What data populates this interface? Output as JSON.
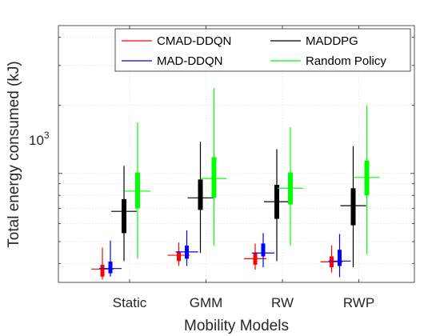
{
  "chart_data": {
    "type": "boxplot",
    "title": "",
    "xlabel": "Mobility Models",
    "ylabel": "Total energy consumed (kJ)",
    "yscale": "log",
    "ylim": [
      330,
      4500
    ],
    "ytick_label": "10",
    "ytick_exponent": "3",
    "grid": true,
    "legend_position": "top-right",
    "legend_columns": 2,
    "categories": [
      "Static",
      "GMM",
      "RW",
      "RWP"
    ],
    "series": [
      {
        "name": "CMAD-DDQN",
        "color": "#ff0000",
        "boxes": [
          {
            "whisker_low": 340,
            "q1": 350,
            "q3": 395,
            "whisker_high": 470,
            "mean": 378
          },
          {
            "whisker_low": 390,
            "q1": 410,
            "q3": 450,
            "whisker_high": 495,
            "mean": 435
          },
          {
            "whisker_low": 375,
            "q1": 395,
            "q3": 445,
            "whisker_high": 490,
            "mean": 420
          },
          {
            "whisker_low": 365,
            "q1": 385,
            "q3": 430,
            "whisker_high": 480,
            "mean": 407
          }
        ]
      },
      {
        "name": "MAD-DDQN",
        "color": "#0000ff",
        "boxes": [
          {
            "whisker_low": 350,
            "q1": 362,
            "q3": 408,
            "whisker_high": 505,
            "mean": 380
          },
          {
            "whisker_low": 390,
            "q1": 420,
            "q3": 480,
            "whisker_high": 560,
            "mean": 450
          },
          {
            "whisker_low": 385,
            "q1": 430,
            "q3": 490,
            "whisker_high": 545,
            "mean": 445
          },
          {
            "whisker_low": 348,
            "q1": 390,
            "q3": 460,
            "whisker_high": 540,
            "mean": 410
          }
        ]
      },
      {
        "name": "MADDPG",
        "color": "#000000",
        "boxes": [
          {
            "whisker_low": 410,
            "q1": 545,
            "q3": 770,
            "whisker_high": 1080,
            "mean": 680
          },
          {
            "whisker_low": 445,
            "q1": 690,
            "q3": 940,
            "whisker_high": 1380,
            "mean": 780
          },
          {
            "whisker_low": 410,
            "q1": 630,
            "q3": 890,
            "whisker_high": 1280,
            "mean": 750
          },
          {
            "whisker_low": 385,
            "q1": 590,
            "q3": 860,
            "whisker_high": 1320,
            "mean": 720
          }
        ]
      },
      {
        "name": "Random Policy",
        "color": "#00ff00",
        "boxes": [
          {
            "whisker_low": 420,
            "q1": 700,
            "q3": 1010,
            "whisker_high": 1680,
            "mean": 835
          },
          {
            "whisker_low": 480,
            "q1": 780,
            "q3": 1180,
            "whisker_high": 2380,
            "mean": 950
          },
          {
            "whisker_low": 480,
            "q1": 730,
            "q3": 1010,
            "whisker_high": 1600,
            "mean": 860
          },
          {
            "whisker_low": 440,
            "q1": 800,
            "q3": 1140,
            "whisker_high": 2000,
            "mean": 960
          }
        ]
      }
    ]
  }
}
